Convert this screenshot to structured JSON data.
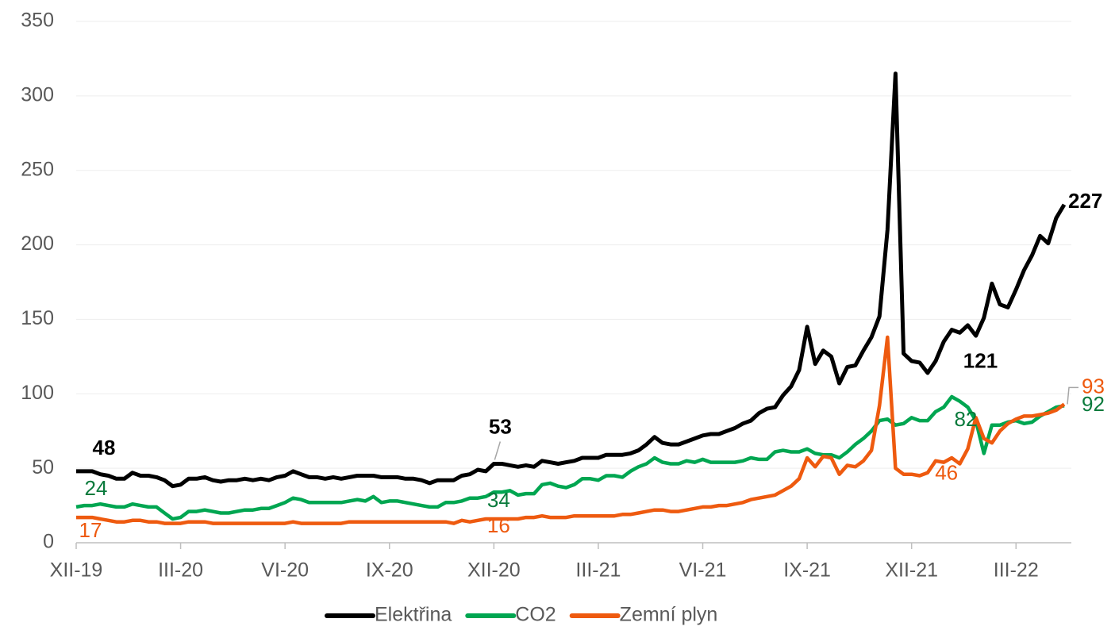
{
  "chart_data": {
    "type": "line",
    "categories": [
      "XII-19",
      null,
      null,
      null,
      null,
      null,
      null,
      null,
      null,
      null,
      null,
      null,
      null,
      "III-20",
      null,
      null,
      null,
      null,
      null,
      null,
      null,
      null,
      null,
      null,
      null,
      null,
      "VI-20",
      null,
      null,
      null,
      null,
      null,
      null,
      null,
      null,
      null,
      null,
      null,
      null,
      "IX-20",
      null,
      null,
      null,
      null,
      null,
      null,
      null,
      null,
      null,
      null,
      null,
      null,
      "XII-20",
      null,
      null,
      null,
      null,
      null,
      null,
      null,
      null,
      null,
      null,
      null,
      null,
      "III-21",
      null,
      null,
      null,
      null,
      null,
      null,
      null,
      null,
      null,
      null,
      null,
      null,
      "VI-21",
      null,
      null,
      null,
      null,
      null,
      null,
      null,
      null,
      null,
      null,
      null,
      null,
      "IX-21",
      null,
      null,
      null,
      null,
      null,
      null,
      null,
      null,
      null,
      null,
      null,
      null,
      "XII-21",
      null,
      null,
      null,
      null,
      null,
      null,
      null,
      null,
      null,
      null,
      null,
      null,
      "III-22",
      null,
      null,
      null,
      null,
      null,
      null
    ],
    "series": [
      {
        "name": "Elektřina",
        "color": "#000000",
        "label_color": "#000000",
        "labeled": [
          0,
          52,
          105,
          123
        ],
        "values": [
          48,
          48,
          48,
          46,
          45,
          43,
          43,
          47,
          45,
          45,
          44,
          42,
          38,
          39,
          43,
          43,
          44,
          42,
          41,
          42,
          42,
          43,
          42,
          43,
          42,
          44,
          45,
          48,
          46,
          44,
          44,
          43,
          44,
          43,
          44,
          45,
          45,
          45,
          44,
          44,
          44,
          43,
          43,
          42,
          40,
          42,
          42,
          42,
          45,
          46,
          49,
          48,
          53,
          53,
          52,
          51,
          52,
          51,
          55,
          54,
          53,
          54,
          55,
          57,
          57,
          57,
          59,
          59,
          59,
          60,
          62,
          66,
          71,
          67,
          66,
          66,
          68,
          70,
          72,
          73,
          73,
          75,
          77,
          80,
          82,
          87,
          90,
          91,
          99,
          105,
          116,
          145,
          120,
          129,
          125,
          107,
          118,
          119,
          129,
          138,
          152,
          210,
          315,
          127,
          122,
          121,
          114,
          122,
          135,
          143,
          141,
          146,
          139,
          151,
          174,
          160,
          158,
          170,
          183,
          193,
          206,
          201,
          218,
          227
        ]
      },
      {
        "name": "CO2",
        "color": "#00a651",
        "label_color": "#0a7a3c",
        "labeled": [
          0,
          52,
          106,
          123
        ],
        "values": [
          24,
          25,
          25,
          26,
          25,
          24,
          24,
          26,
          25,
          24,
          24,
          20,
          16,
          17,
          21,
          21,
          22,
          21,
          20,
          20,
          21,
          22,
          22,
          23,
          23,
          25,
          27,
          30,
          29,
          27,
          27,
          27,
          27,
          27,
          28,
          29,
          28,
          31,
          27,
          28,
          28,
          27,
          26,
          25,
          24,
          24,
          27,
          27,
          28,
          30,
          30,
          31,
          34,
          34,
          35,
          32,
          33,
          33,
          39,
          40,
          38,
          37,
          39,
          43,
          43,
          42,
          45,
          45,
          44,
          48,
          51,
          53,
          57,
          54,
          53,
          53,
          55,
          54,
          56,
          54,
          54,
          54,
          54,
          55,
          57,
          56,
          56,
          61,
          62,
          61,
          61,
          63,
          60,
          59,
          59,
          57,
          61,
          66,
          70,
          75,
          82,
          83,
          79,
          80,
          84,
          82,
          82,
          88,
          91,
          98,
          95,
          91,
          82,
          60,
          79,
          79,
          81,
          82,
          80,
          81,
          85,
          88,
          91,
          92
        ]
      },
      {
        "name": "Zemní plyn",
        "color": "#ee5a0f",
        "label_color": "#ee5a0f",
        "labeled": [
          0,
          52,
          104,
          123
        ],
        "values": [
          17,
          17,
          17,
          16,
          15,
          14,
          14,
          15,
          15,
          14,
          14,
          13,
          13,
          13,
          14,
          14,
          14,
          13,
          13,
          13,
          13,
          13,
          13,
          13,
          13,
          13,
          13,
          14,
          13,
          13,
          13,
          13,
          13,
          13,
          14,
          14,
          14,
          14,
          14,
          14,
          14,
          14,
          14,
          14,
          14,
          14,
          14,
          13,
          15,
          14,
          15,
          16,
          16,
          16,
          16,
          16,
          17,
          17,
          18,
          17,
          17,
          17,
          18,
          18,
          18,
          18,
          18,
          18,
          19,
          19,
          20,
          21,
          22,
          22,
          21,
          21,
          22,
          23,
          24,
          24,
          25,
          25,
          26,
          27,
          29,
          30,
          31,
          32,
          35,
          38,
          43,
          57,
          51,
          58,
          57,
          46,
          52,
          51,
          55,
          62,
          92,
          138,
          50,
          46,
          46,
          45,
          47,
          55,
          54,
          57,
          53,
          63,
          84,
          70,
          67,
          75,
          80,
          83,
          85,
          85,
          86,
          87,
          89,
          93
        ]
      }
    ],
    "ylim": [
      0,
      350
    ],
    "yticks": [
      0,
      50,
      100,
      150,
      200,
      250,
      300,
      350
    ],
    "grid": true,
    "legend": "bottom"
  }
}
